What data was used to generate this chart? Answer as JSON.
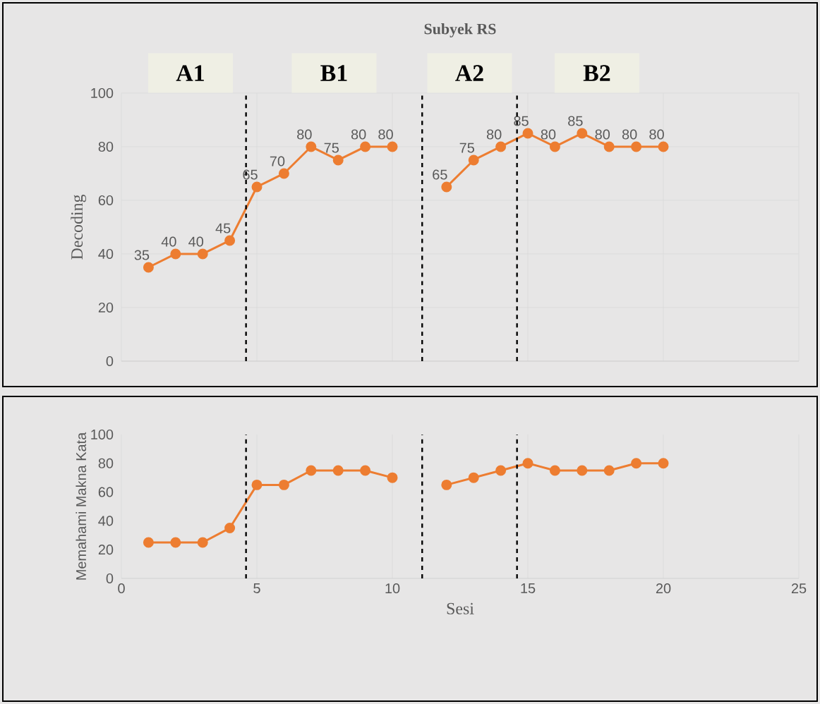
{
  "chart_data": [
    {
      "type": "line",
      "title": "Subyek RS",
      "ylabel": "Decoding",
      "x": [
        1,
        2,
        3,
        4,
        5,
        6,
        7,
        8,
        9,
        10,
        11,
        12,
        13,
        14,
        15,
        16,
        17,
        18,
        19,
        20
      ],
      "series": [
        {
          "color": "#ed7d31",
          "values": [
            35,
            40,
            40,
            45,
            65,
            70,
            80,
            75,
            80,
            80,
            null,
            65,
            75,
            80,
            85,
            80,
            85,
            80,
            80,
            80
          ]
        }
      ],
      "xlim": [
        0,
        25
      ],
      "ylim": [
        0,
        100
      ],
      "xticks": [
        0,
        5,
        10,
        15,
        20,
        25
      ],
      "yticks": [
        0,
        20,
        40,
        60,
        80,
        100
      ],
      "tick_labels": "y",
      "grid": true,
      "marker": "circle",
      "data_labels": true,
      "annotations": [
        "A1",
        "B1",
        "A2",
        "B2"
      ],
      "ref_lines": [
        {
          "axis": "x",
          "value": 4.6,
          "color": "#000000",
          "line_style": "dashed"
        },
        {
          "axis": "x",
          "value": 11.1,
          "color": "#000000",
          "line_style": "dashed"
        },
        {
          "axis": "x",
          "value": 14.6,
          "color": "#000000",
          "line_style": "dashed"
        }
      ]
    },
    {
      "type": "line",
      "xlabel": "Sesi",
      "ylabel": "Memahami Makna Kata",
      "x": [
        1,
        2,
        3,
        4,
        5,
        6,
        7,
        8,
        9,
        10,
        11,
        12,
        13,
        14,
        15,
        16,
        17,
        18,
        19,
        20
      ],
      "series": [
        {
          "color": "#ed7d31",
          "values": [
            25,
            25,
            25,
            35,
            65,
            65,
            75,
            75,
            75,
            70,
            null,
            65,
            70,
            75,
            80,
            75,
            75,
            75,
            80,
            80
          ]
        }
      ],
      "xlim": [
        0,
        25
      ],
      "ylim": [
        0,
        100
      ],
      "xticks": [
        0,
        5,
        10,
        15,
        20,
        25
      ],
      "yticks": [
        0,
        20,
        40,
        60,
        80,
        100
      ],
      "grid": "x",
      "marker": "circle",
      "ref_lines": [
        {
          "axis": "x",
          "value": 4.6,
          "color": "#000000",
          "line_style": "dashed"
        },
        {
          "axis": "x",
          "value": 11.1,
          "color": "#000000",
          "line_style": "dashed"
        },
        {
          "axis": "x",
          "value": 14.6,
          "color": "#000000",
          "line_style": "dashed"
        }
      ]
    }
  ]
}
